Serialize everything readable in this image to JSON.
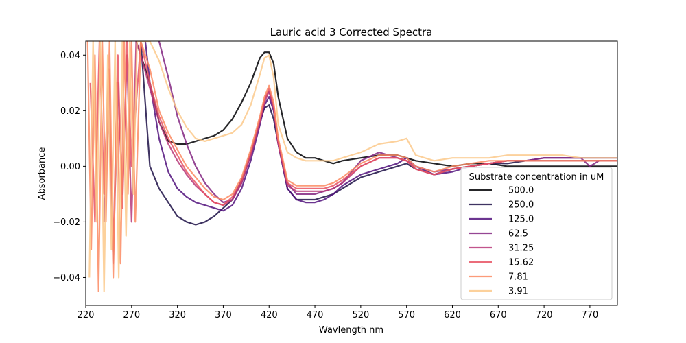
{
  "chart_data": {
    "type": "line",
    "title": "Lauric acid 3 Corrected Spectra",
    "xlabel": "Wavlength nm",
    "ylabel": "Absorbance",
    "xlim": [
      220,
      800
    ],
    "ylim": [
      -0.05,
      0.045
    ],
    "xticks": [
      220,
      270,
      320,
      370,
      420,
      470,
      520,
      570,
      620,
      670,
      720,
      770
    ],
    "yticks": [
      -0.04,
      -0.02,
      0.0,
      0.02,
      0.04
    ],
    "ytick_labels": [
      "−0.04",
      "−0.02",
      "0.00",
      "0.02",
      "0.04"
    ],
    "grid": false,
    "legend": {
      "title": "Substrate concentration in uM",
      "placement": "lower-right"
    },
    "series": [
      {
        "name": "500.0",
        "color": "#000004",
        "x": [
          275,
          290,
          300,
          310,
          320,
          330,
          340,
          350,
          360,
          370,
          380,
          390,
          400,
          410,
          415,
          420,
          425,
          430,
          440,
          450,
          460,
          470,
          480,
          490,
          500,
          520,
          540,
          560,
          570,
          580,
          600,
          620,
          640,
          660,
          680,
          700,
          720,
          740,
          760,
          780,
          800
        ],
        "y": [
          0.045,
          0.03,
          0.016,
          0.009,
          0.008,
          0.008,
          0.009,
          0.01,
          0.011,
          0.013,
          0.017,
          0.023,
          0.03,
          0.039,
          0.041,
          0.041,
          0.037,
          0.025,
          0.01,
          0.005,
          0.003,
          0.003,
          0.002,
          0.001,
          0.002,
          0.003,
          0.004,
          0.004,
          0.003,
          0.002,
          0.001,
          0.0,
          0.001,
          0.001,
          0.0,
          0.0,
          0.0,
          0.0,
          0.0,
          0.0,
          0.0
        ]
      },
      {
        "name": "250.0",
        "color": "#1d1147",
        "x": [
          280,
          290,
          300,
          310,
          320,
          330,
          340,
          350,
          360,
          370,
          380,
          390,
          400,
          410,
          415,
          420,
          425,
          430,
          440,
          450,
          460,
          470,
          480,
          490,
          500,
          520,
          540,
          560,
          570,
          580,
          600,
          620,
          640,
          660,
          680,
          700,
          720,
          740,
          760,
          780,
          800
        ],
        "y": [
          0.045,
          0.0,
          -0.008,
          -0.013,
          -0.018,
          -0.02,
          -0.021,
          -0.02,
          -0.018,
          -0.015,
          -0.012,
          -0.005,
          0.005,
          0.016,
          0.021,
          0.022,
          0.017,
          0.008,
          -0.008,
          -0.012,
          -0.012,
          -0.012,
          -0.011,
          -0.01,
          -0.008,
          -0.004,
          -0.002,
          0.0,
          0.001,
          -0.001,
          -0.003,
          -0.001,
          0.0,
          0.001,
          0.001,
          0.002,
          0.002,
          0.002,
          0.002,
          0.002,
          0.002
        ]
      },
      {
        "name": "125.0",
        "color": "#51127c",
        "x": [
          285,
          290,
          300,
          310,
          320,
          330,
          340,
          350,
          360,
          370,
          380,
          390,
          400,
          410,
          415,
          420,
          425,
          430,
          440,
          450,
          460,
          470,
          480,
          490,
          500,
          520,
          540,
          560,
          570,
          580,
          600,
          620,
          640,
          660,
          680,
          700,
          720,
          740,
          760,
          780,
          800
        ],
        "y": [
          0.045,
          0.03,
          0.01,
          -0.002,
          -0.008,
          -0.011,
          -0.013,
          -0.014,
          -0.015,
          -0.016,
          -0.014,
          -0.008,
          0.002,
          0.015,
          0.022,
          0.025,
          0.02,
          0.008,
          -0.008,
          -0.012,
          -0.013,
          -0.013,
          -0.012,
          -0.01,
          -0.007,
          -0.003,
          -0.001,
          0.001,
          0.003,
          0.0,
          -0.003,
          -0.002,
          0.0,
          0.001,
          0.002,
          0.002,
          0.003,
          0.003,
          0.003,
          0.003,
          0.003
        ]
      },
      {
        "name": "62.5",
        "color": "#832681",
        "x": [
          300,
          310,
          320,
          330,
          340,
          350,
          360,
          370,
          380,
          390,
          400,
          410,
          415,
          420,
          425,
          430,
          440,
          450,
          460,
          470,
          480,
          490,
          500,
          520,
          540,
          560,
          570,
          580,
          600,
          620,
          640,
          660,
          680,
          700,
          720,
          740,
          760,
          770,
          780,
          800
        ],
        "y": [
          0.045,
          0.032,
          0.018,
          0.008,
          0.0,
          -0.006,
          -0.01,
          -0.013,
          -0.012,
          -0.006,
          0.004,
          0.017,
          0.024,
          0.027,
          0.021,
          0.008,
          -0.006,
          -0.01,
          -0.01,
          -0.01,
          -0.009,
          -0.008,
          -0.006,
          0.002,
          0.005,
          0.003,
          0.002,
          0.0,
          -0.002,
          -0.001,
          0.0,
          0.001,
          0.002,
          0.002,
          0.003,
          0.003,
          0.003,
          0.0,
          0.002,
          0.002
        ]
      },
      {
        "name": "31.25",
        "color": "#b73779",
        "x": [
          240,
          245,
          250,
          255,
          260,
          265,
          270,
          275,
          280,
          290,
          300,
          310,
          320,
          330,
          340,
          350,
          360,
          370,
          380,
          390,
          400,
          410,
          415,
          420,
          425,
          430,
          440,
          450,
          460,
          470,
          480,
          490,
          500,
          520,
          540,
          560,
          570,
          580,
          600,
          620,
          640,
          660,
          680,
          700,
          720,
          740,
          760,
          780,
          800
        ],
        "y": [
          -0.02,
          0.02,
          -0.035,
          0.03,
          -0.01,
          0.04,
          -0.02,
          0.045,
          0.04,
          0.028,
          0.016,
          0.008,
          0.002,
          -0.003,
          -0.007,
          -0.01,
          -0.013,
          -0.014,
          -0.012,
          -0.006,
          0.004,
          0.016,
          0.023,
          0.027,
          0.021,
          0.008,
          -0.007,
          -0.009,
          -0.009,
          -0.009,
          -0.009,
          -0.008,
          -0.006,
          0.0,
          0.003,
          0.003,
          0.002,
          -0.001,
          -0.003,
          -0.001,
          0.0,
          0.001,
          0.002,
          0.002,
          0.002,
          0.002,
          0.002,
          0.002,
          0.002
        ]
      },
      {
        "name": "15.62",
        "color": "#e75263",
        "x": [
          225,
          230,
          235,
          240,
          245,
          250,
          255,
          260,
          265,
          270,
          280,
          290,
          300,
          310,
          320,
          330,
          340,
          350,
          360,
          370,
          380,
          390,
          400,
          410,
          415,
          420,
          425,
          430,
          440,
          450,
          460,
          470,
          480,
          490,
          500,
          520,
          540,
          560,
          570,
          580,
          600,
          620,
          640,
          660,
          680,
          700,
          720,
          740,
          760,
          780,
          800
        ],
        "y": [
          0.03,
          -0.02,
          0.045,
          -0.01,
          0.035,
          -0.03,
          0.04,
          -0.015,
          0.045,
          0.0,
          0.045,
          0.03,
          0.018,
          0.01,
          0.004,
          -0.002,
          -0.006,
          -0.01,
          -0.013,
          -0.014,
          -0.011,
          -0.005,
          0.005,
          0.017,
          0.024,
          0.028,
          0.022,
          0.009,
          -0.006,
          -0.008,
          -0.008,
          -0.008,
          -0.008,
          -0.007,
          -0.005,
          0.0,
          0.003,
          0.003,
          0.002,
          -0.001,
          -0.003,
          -0.001,
          0.0,
          0.001,
          0.002,
          0.002,
          0.002,
          0.002,
          0.002,
          0.002,
          0.002
        ]
      },
      {
        "name": "7.81",
        "color": "#fc8961",
        "x": [
          222,
          226,
          230,
          234,
          238,
          242,
          246,
          250,
          254,
          258,
          262,
          266,
          270,
          274,
          280,
          290,
          300,
          310,
          320,
          330,
          340,
          350,
          360,
          370,
          380,
          390,
          400,
          410,
          415,
          420,
          425,
          430,
          440,
          450,
          460,
          470,
          480,
          490,
          500,
          520,
          540,
          560,
          570,
          580,
          600,
          620,
          640,
          660,
          680,
          700,
          720,
          740,
          760,
          780,
          800
        ],
        "y": [
          0.045,
          -0.03,
          0.04,
          -0.045,
          0.045,
          -0.02,
          0.045,
          -0.04,
          0.03,
          -0.035,
          0.045,
          -0.01,
          0.045,
          -0.02,
          0.045,
          0.035,
          0.02,
          0.012,
          0.006,
          0.0,
          -0.004,
          -0.008,
          -0.011,
          -0.012,
          -0.01,
          -0.004,
          0.006,
          0.018,
          0.025,
          0.029,
          0.023,
          0.01,
          -0.005,
          -0.007,
          -0.007,
          -0.007,
          -0.007,
          -0.006,
          -0.004,
          0.001,
          0.004,
          0.004,
          0.003,
          0.0,
          -0.002,
          0.0,
          0.001,
          0.002,
          0.002,
          0.002,
          0.002,
          0.002,
          0.002,
          0.002,
          0.002
        ]
      },
      {
        "name": "3.91",
        "color": "#fcc98b",
        "x": [
          224,
          228,
          232,
          236,
          240,
          244,
          248,
          252,
          256,
          260,
          264,
          268,
          272,
          276,
          280,
          290,
          300,
          310,
          320,
          330,
          340,
          350,
          360,
          370,
          380,
          390,
          400,
          410,
          415,
          420,
          425,
          430,
          440,
          450,
          460,
          470,
          480,
          490,
          500,
          520,
          540,
          560,
          570,
          580,
          600,
          620,
          640,
          660,
          680,
          700,
          720,
          740,
          760,
          780,
          800
        ],
        "y": [
          -0.04,
          0.045,
          -0.02,
          0.045,
          -0.045,
          0.04,
          -0.03,
          0.045,
          -0.04,
          0.045,
          -0.025,
          0.045,
          -0.01,
          0.045,
          0.045,
          0.045,
          0.038,
          0.028,
          0.02,
          0.014,
          0.01,
          0.009,
          0.01,
          0.011,
          0.012,
          0.015,
          0.022,
          0.033,
          0.039,
          0.04,
          0.032,
          0.015,
          0.005,
          0.003,
          0.002,
          0.002,
          0.002,
          0.002,
          0.003,
          0.005,
          0.008,
          0.009,
          0.01,
          0.004,
          0.002,
          0.003,
          0.003,
          0.003,
          0.004,
          0.004,
          0.004,
          0.004,
          0.003,
          0.003,
          0.003
        ]
      }
    ]
  }
}
